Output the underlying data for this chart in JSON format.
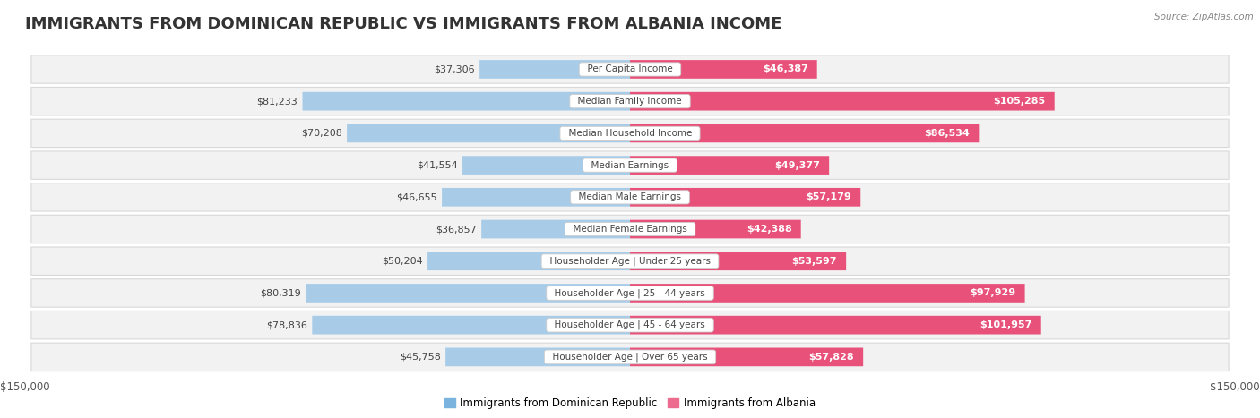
{
  "title": "IMMIGRANTS FROM DOMINICAN REPUBLIC VS IMMIGRANTS FROM ALBANIA INCOME",
  "source": "Source: ZipAtlas.com",
  "categories": [
    "Per Capita Income",
    "Median Family Income",
    "Median Household Income",
    "Median Earnings",
    "Median Male Earnings",
    "Median Female Earnings",
    "Householder Age | Under 25 years",
    "Householder Age | 25 - 44 years",
    "Householder Age | 45 - 64 years",
    "Householder Age | Over 65 years"
  ],
  "dominican_values": [
    37306,
    81233,
    70208,
    41554,
    46655,
    36857,
    50204,
    80319,
    78836,
    45758
  ],
  "albania_values": [
    46387,
    105285,
    86534,
    49377,
    57179,
    42388,
    53597,
    97929,
    101957,
    57828
  ],
  "dominican_labels": [
    "$37,306",
    "$81,233",
    "$70,208",
    "$41,554",
    "$46,655",
    "$36,857",
    "$50,204",
    "$80,319",
    "$78,836",
    "$45,758"
  ],
  "albania_labels": [
    "$46,387",
    "$105,285",
    "$86,534",
    "$49,377",
    "$57,179",
    "$42,388",
    "$53,597",
    "$97,929",
    "$101,957",
    "$57,828"
  ],
  "color_dominican_light": "#a8cce8",
  "color_dominican_dark": "#5b9bd5",
  "color_albania_light": "#f4a7c0",
  "color_albania_dark": "#e8527a",
  "color_dominican_legend": "#7ab3de",
  "color_albania_legend": "#ee6b90",
  "row_bg": "#f2f2f2",
  "max_val": 150000,
  "label_axis": "$150,000",
  "title_fontsize": 13,
  "label_fontsize": 8,
  "category_fontsize": 7.5,
  "legend_fontsize": 8.5,
  "dark_threshold": 60000
}
